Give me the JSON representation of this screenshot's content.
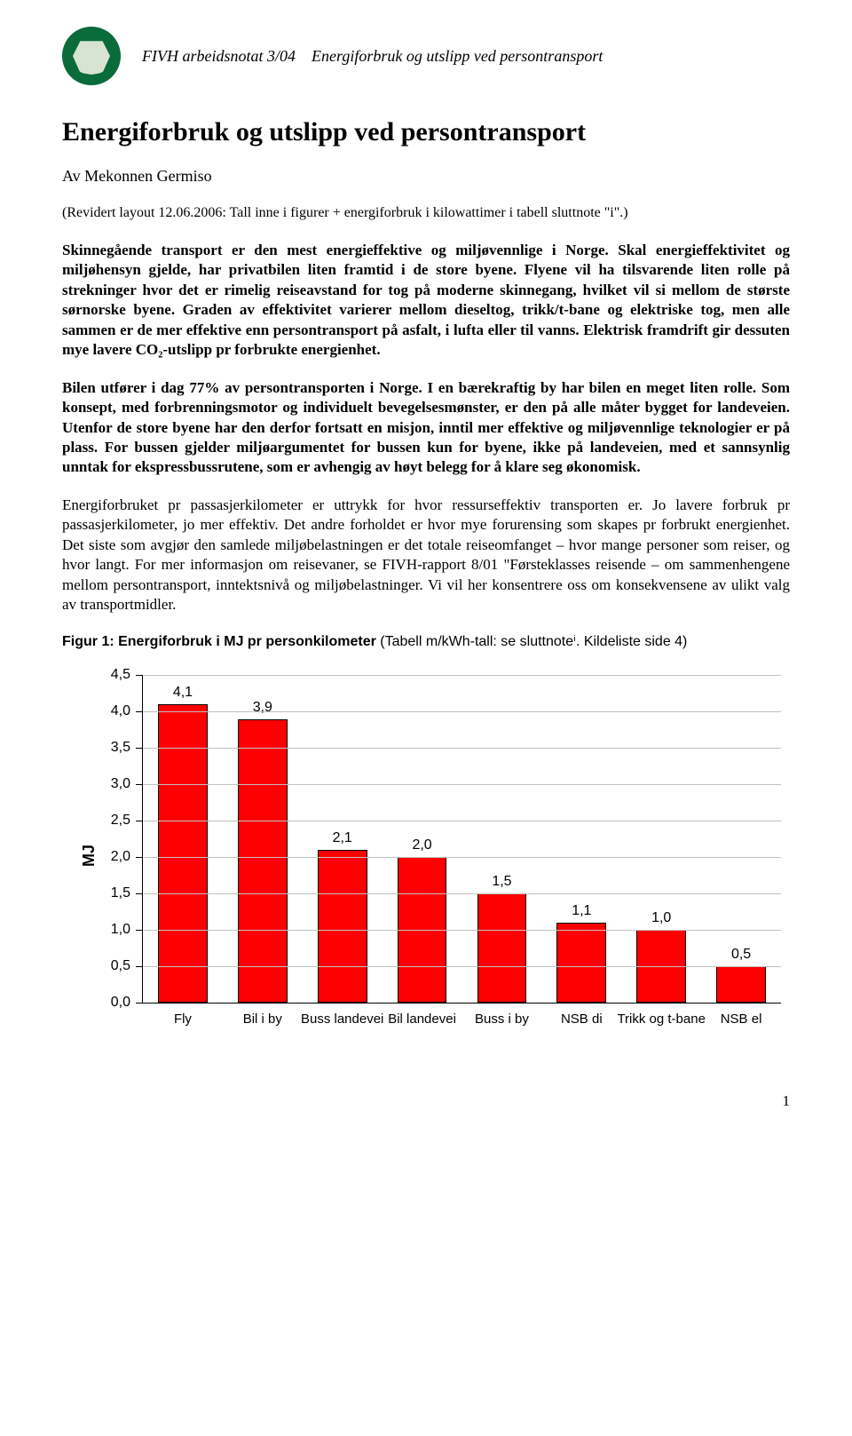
{
  "header": {
    "left": "FIVH arbeidsnotat 3/04",
    "right": "Energiforbruk og utslipp ved persontransport"
  },
  "title": "Energiforbruk og utslipp ved persontransport",
  "author": "Av Mekonnen Germiso",
  "revnote": "(Revidert layout 12.06.2006: Tall inne i figurer + energiforbruk i kilowattimer i tabell sluttnote \"i\".)",
  "para1": "Skinnegående transport er den mest energieffektive og miljøvennlige i Norge. Skal energieffektivitet og miljøhensyn gjelde, har privatbilen liten framtid i de store byene. Flyene vil ha tilsvarende liten rolle på strekninger hvor det er rimelig reiseavstand for tog på moderne skinnegang, hvilket vil si mellom de største sørnorske byene. Graden av effektivitet varierer mellom dieseltog, trikk/t-bane og elektriske tog, men alle sammen er de mer effektive enn persontransport på asfalt, i lufta eller til vanns. Elektrisk framdrift gir dessuten mye lavere CO₂-utslipp pr forbrukte energienhet.",
  "para2": "Bilen utfører i dag 77% av persontransporten i Norge. I en bærekraftig by har bilen en meget liten rolle. Som konsept, med forbrenningsmotor og individuelt bevegelsesmønster, er den på alle måter bygget for landeveien. Utenfor de store byene har den derfor fortsatt en misjon, inntil mer effektive og miljøvennlige teknologier er på plass. For bussen gjelder miljøargumentet for bussen kun for byene, ikke på landeveien, med et sannsynlig unntak for ekspressbussrutene, som er avhengig av høyt belegg for å klare seg økonomisk.",
  "para3": "Energiforbruket pr passasjerkilometer er uttrykk for hvor ressurseffektiv transporten er. Jo lavere forbruk pr passasjerkilometer, jo mer effektiv. Det andre forholdet er hvor mye forurensing som skapes pr forbrukt energienhet. Det siste som avgjør den samlede miljøbelastningen er det totale reiseomfanget – hvor mange personer som reiser, og hvor langt. For mer informasjon om reisevaner, se FIVH-rapport 8/01 \"Førsteklasses reisende – om sammenhengene mellom persontransport, inntektsnivå og miljøbelastninger. Vi vil her konsentrere oss om konsekvensene av ulikt valg av transportmidler.",
  "fig_caption_bold": "Figur 1: Energiforbruk i MJ pr personkilometer ",
  "fig_caption_rest": "(Tabell m/kWh-tall: se sluttnoteⁱ. Kildeliste side 4)",
  "chart": {
    "type": "bar",
    "y_axis_title": "MJ",
    "ylim": [
      0.0,
      4.5
    ],
    "ytick_step": 0.5,
    "yticks": [
      "0,0",
      "0,5",
      "1,0",
      "1,5",
      "2,0",
      "2,5",
      "3,0",
      "3,5",
      "4,0",
      "4,5"
    ],
    "grid_color": "#c0c0c0",
    "bar_color": "#ff0000",
    "bar_border": "#000000",
    "background_color": "#ffffff",
    "categories": [
      "Fly",
      "Bil i by",
      "Buss landevei",
      "Bil landevei",
      "Buss i by",
      "NSB di",
      "Trikk og t-bane",
      "NSB el"
    ],
    "values": [
      4.1,
      3.9,
      2.1,
      2.0,
      1.5,
      1.1,
      1.0,
      0.5
    ],
    "value_labels": [
      "4,1",
      "3,9",
      "2,1",
      "2,0",
      "1,5",
      "1,1",
      "1,0",
      "0,5"
    ]
  },
  "page_number": "1"
}
